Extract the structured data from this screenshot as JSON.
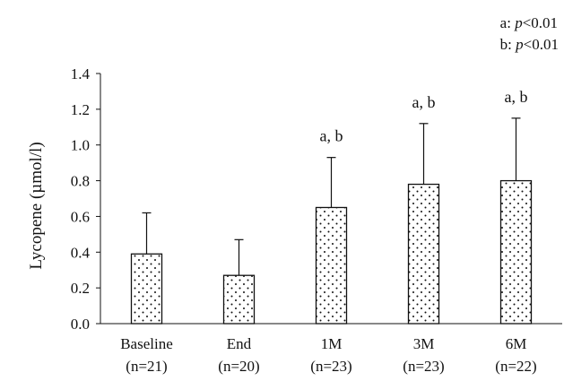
{
  "legend": [
    {
      "key": "a: ",
      "p": "p",
      "rest": "<0.01"
    },
    {
      "key": "b: ",
      "p": "p",
      "rest": "<0.01"
    }
  ],
  "chart_data": {
    "type": "bar",
    "ylabel": "Lycopene (µmol/l)",
    "ylim": [
      0,
      1.4
    ],
    "yticks": [
      "0.0",
      "0.2",
      "0.4",
      "0.6",
      "0.8",
      "1.0",
      "1.2",
      "1.4"
    ],
    "categories": [
      "Baseline",
      "End",
      "1M",
      "3M",
      "6M"
    ],
    "sample_sizes": [
      "(n=21)",
      "(n=20)",
      "(n=23)",
      "(n=23)",
      "(n=22)"
    ],
    "values": [
      0.39,
      0.27,
      0.65,
      0.78,
      0.8
    ],
    "error_upper": [
      0.23,
      0.2,
      0.28,
      0.34,
      0.35
    ],
    "annotations": [
      "",
      "",
      "a, b",
      "a, b",
      "a, b"
    ],
    "bar_fill": "dotted",
    "grid": false
  }
}
